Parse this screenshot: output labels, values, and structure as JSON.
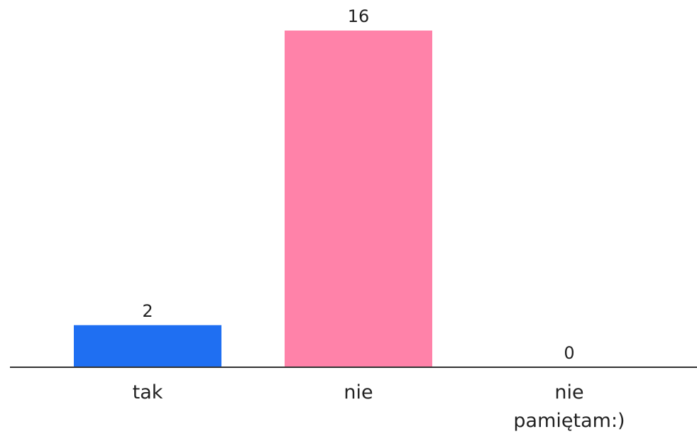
{
  "chart_data": {
    "type": "bar",
    "categories": [
      "tak",
      "nie",
      "nie pamiętam:)"
    ],
    "category_lines": [
      [
        "tak"
      ],
      [
        "nie"
      ],
      [
        "nie",
        "pamiętam:)"
      ]
    ],
    "values": [
      2,
      16,
      0
    ],
    "colors": [
      "#1f6ff2",
      "#ff82a9",
      "#9b6cf0"
    ],
    "axis_color": "#333333",
    "title": "",
    "xlabel": "",
    "ylabel": "",
    "ylim": [
      0,
      16
    ],
    "grid": false,
    "legend": "none"
  }
}
